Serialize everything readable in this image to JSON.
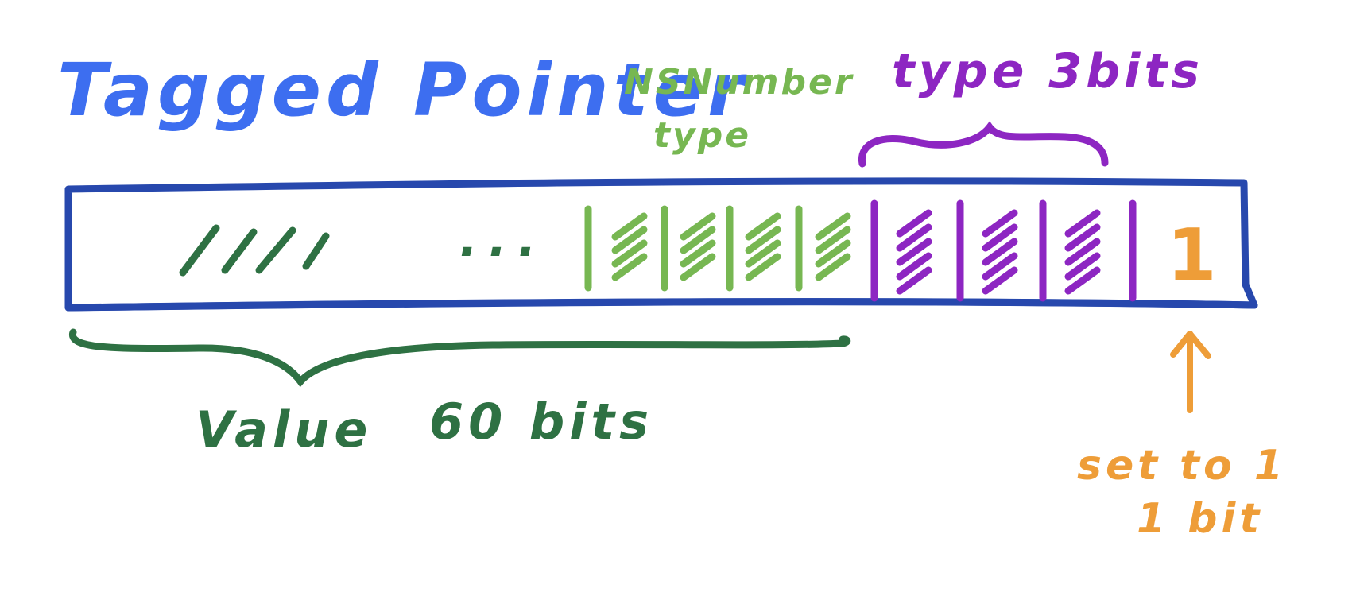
{
  "title": "Tagged Pointer",
  "labels": {
    "nsnumber_line1": "NSNumber",
    "nsnumber_line2": "type",
    "type_bits": "type 3bits",
    "value": "Value",
    "value_bits": "60 bits",
    "set_line1": "set to 1",
    "set_line2": "1 bit",
    "lsb_value": "1",
    "ellipsis": "..."
  },
  "colors": {
    "title": "#3d6ef0",
    "box": "#2748ad",
    "value_green": "#2e7143",
    "nsnumber_green": "#77b752",
    "type_purple": "#8d26c2",
    "flag_orange": "#ee9d38"
  }
}
